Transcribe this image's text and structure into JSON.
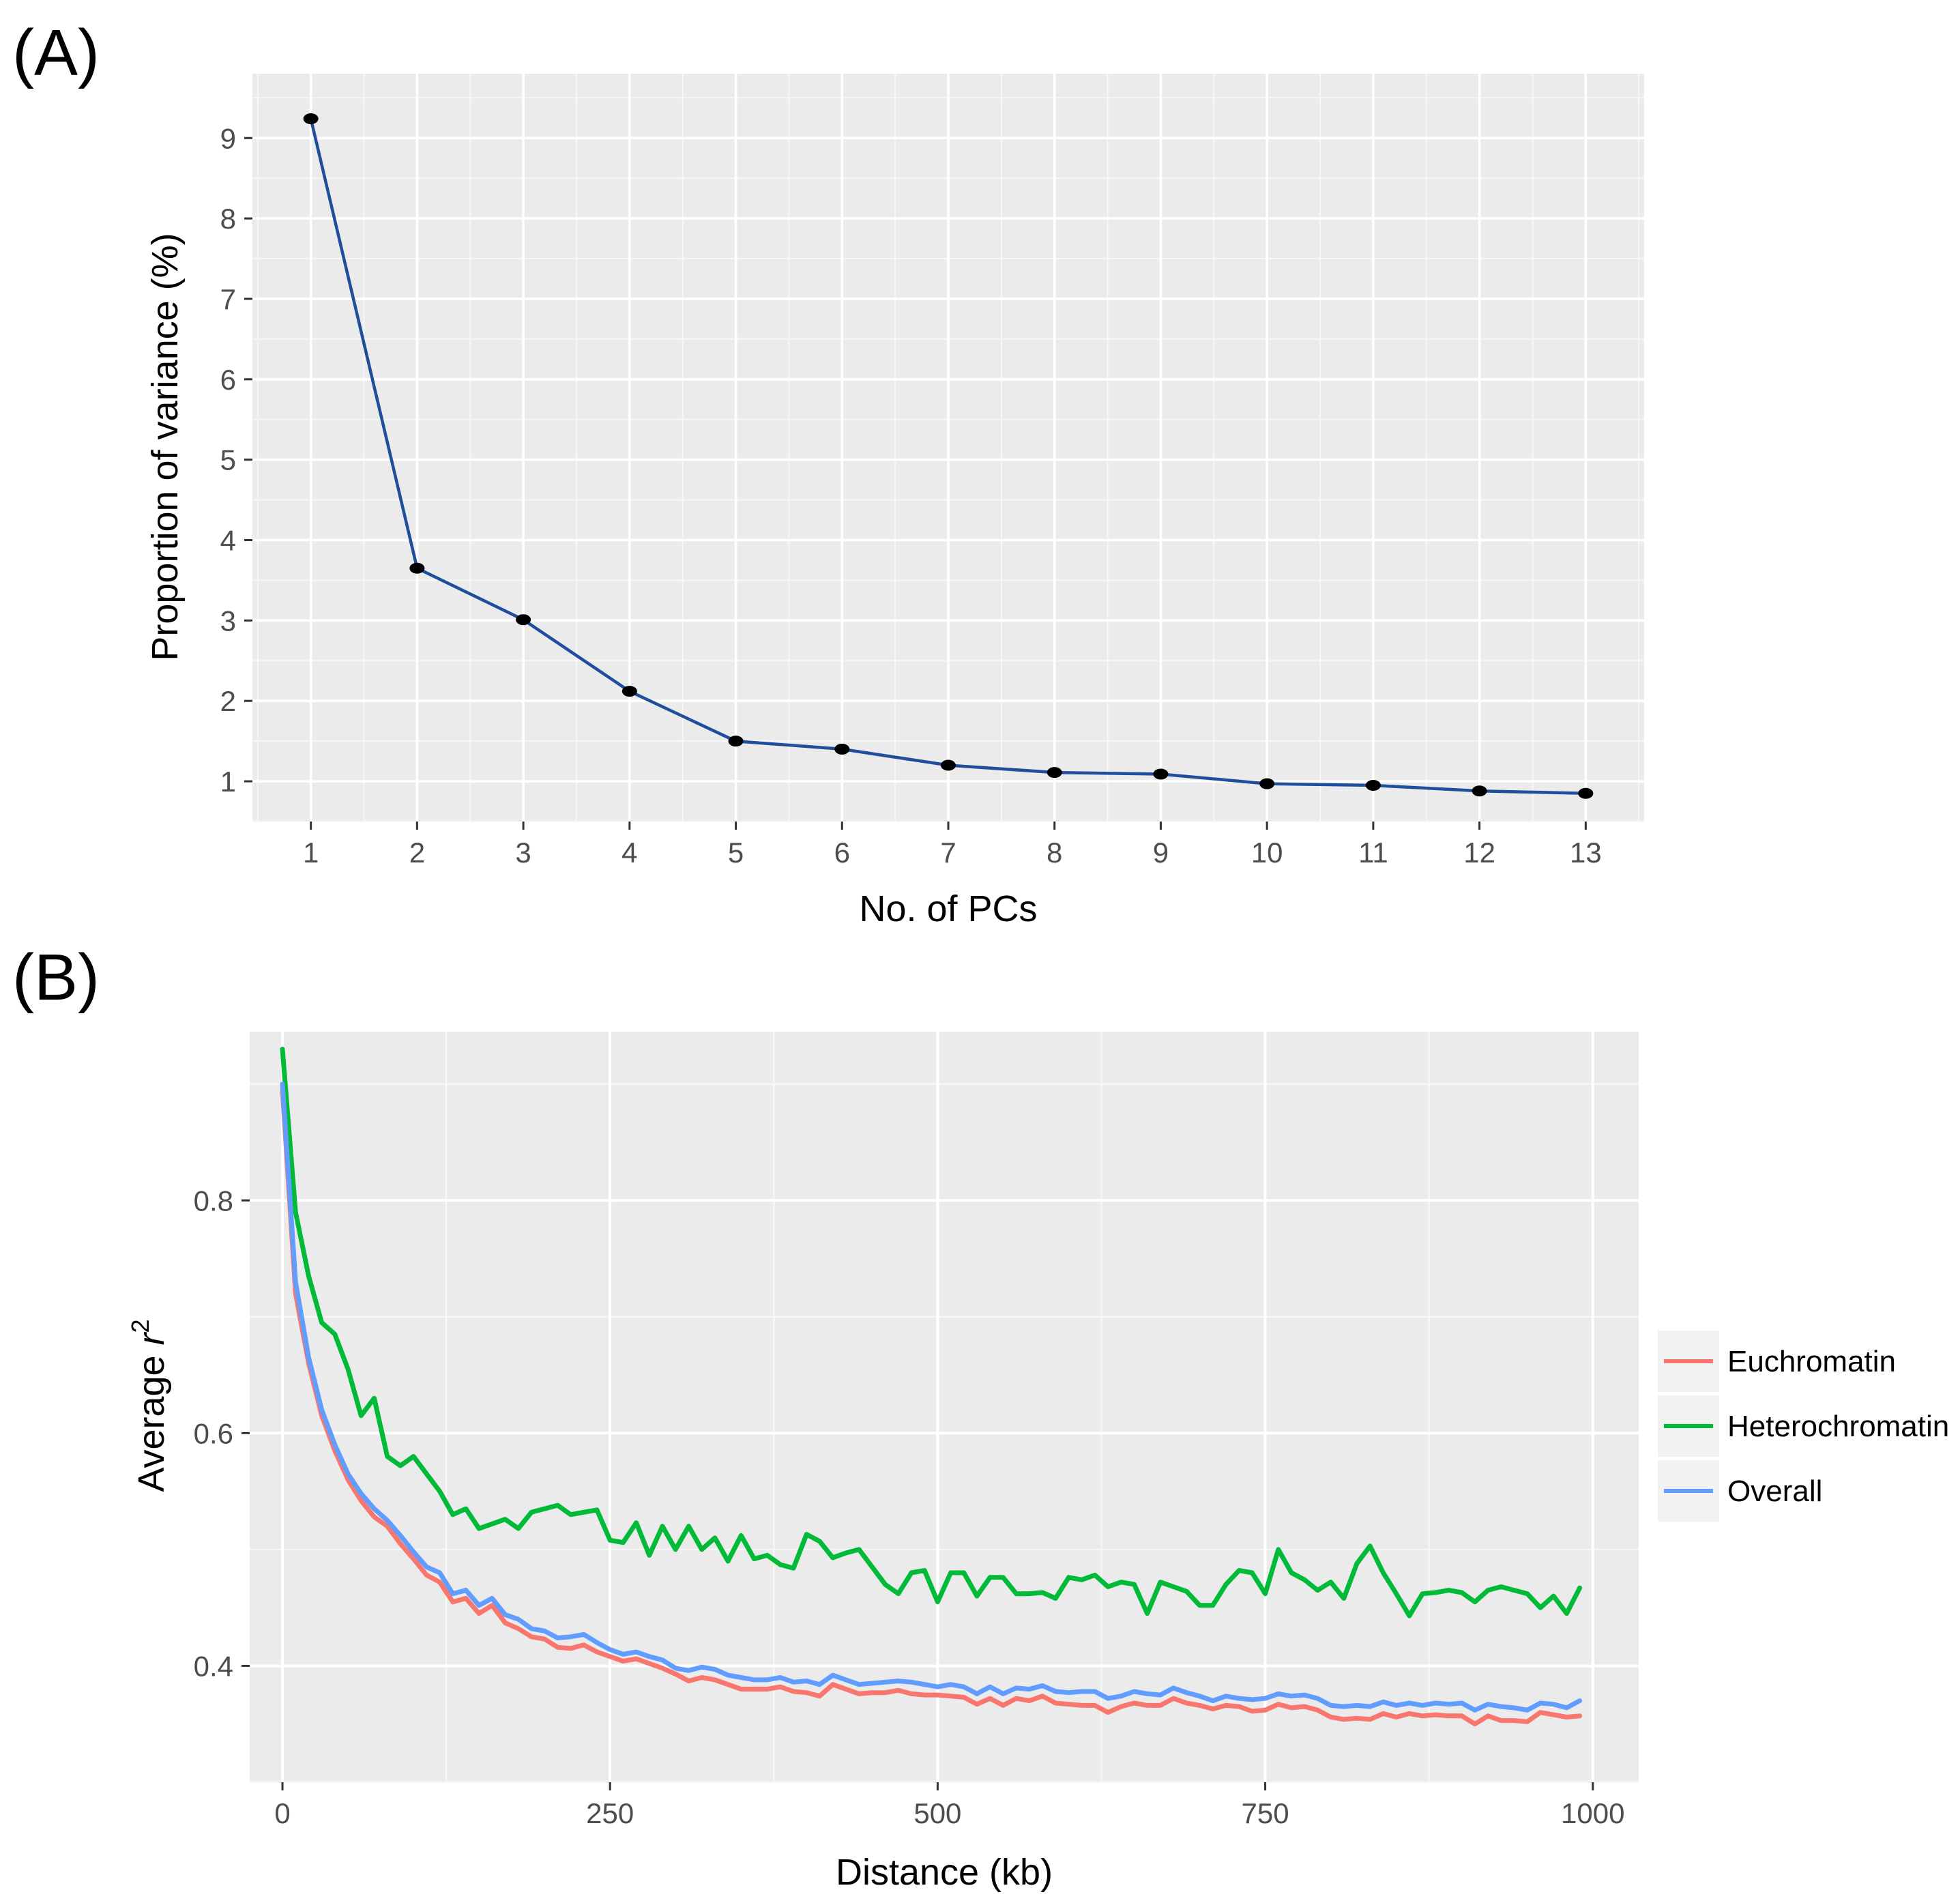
{
  "chart_data": [
    {
      "panel_label": "(A)",
      "type": "line",
      "xlabel": "No. of PCs",
      "ylabel": "Proportion of variance (%)",
      "xlim": [
        0.45,
        13.55
      ],
      "ylim": [
        0.5,
        9.8
      ],
      "xticks": [
        1,
        2,
        3,
        4,
        5,
        6,
        7,
        8,
        9,
        10,
        11,
        12,
        13
      ],
      "yticks": [
        1,
        2,
        3,
        4,
        5,
        6,
        7,
        8,
        9
      ],
      "grid": true,
      "line_color": "#1f4e9c",
      "point_color": "#000000",
      "x": [
        1,
        2,
        3,
        4,
        5,
        6,
        7,
        8,
        9,
        10,
        11,
        12,
        13
      ],
      "values": [
        9.24,
        3.65,
        3.01,
        2.12,
        1.5,
        1.4,
        1.2,
        1.11,
        1.09,
        0.97,
        0.95,
        0.88,
        0.85
      ]
    },
    {
      "panel_label": "(B)",
      "type": "line",
      "xlabel": "Distance (kb)",
      "ylabel": "Average r²",
      "ylabel_main": "Average ",
      "ylabel_italic": "r",
      "ylabel_sup": "2",
      "xlim": [
        -25,
        1035
      ],
      "ylim": [
        0.3,
        0.945
      ],
      "xticks": [
        0,
        250,
        500,
        750,
        1000
      ],
      "yticks": [
        0.4,
        0.6,
        0.8
      ],
      "ytick_labels": [
        "0.4",
        "0.6",
        "0.8"
      ],
      "grid": true,
      "legend_position": "right",
      "x": [
        0,
        10,
        20,
        30,
        40,
        50,
        60,
        70,
        80,
        90,
        100,
        110,
        120,
        130,
        140,
        150,
        160,
        170,
        180,
        190,
        200,
        210,
        220,
        230,
        240,
        250,
        260,
        270,
        280,
        290,
        300,
        310,
        320,
        330,
        340,
        350,
        360,
        370,
        380,
        390,
        400,
        410,
        420,
        430,
        440,
        450,
        460,
        470,
        480,
        490,
        500,
        510,
        520,
        530,
        540,
        550,
        560,
        570,
        580,
        590,
        600,
        610,
        620,
        630,
        640,
        650,
        660,
        670,
        680,
        690,
        700,
        710,
        720,
        730,
        740,
        750,
        760,
        770,
        780,
        790,
        800,
        810,
        820,
        830,
        840,
        850,
        860,
        870,
        880,
        890,
        900,
        910,
        920,
        930,
        940,
        950,
        960,
        970,
        980,
        990
      ],
      "series": [
        {
          "name": "Euchromatin",
          "color": "#f8766d",
          "values": [
            0.895,
            0.72,
            0.66,
            0.615,
            0.585,
            0.56,
            0.542,
            0.528,
            0.52,
            0.505,
            0.492,
            0.478,
            0.472,
            0.455,
            0.458,
            0.445,
            0.452,
            0.437,
            0.432,
            0.425,
            0.423,
            0.416,
            0.415,
            0.418,
            0.412,
            0.408,
            0.404,
            0.406,
            0.402,
            0.398,
            0.393,
            0.387,
            0.39,
            0.388,
            0.384,
            0.38,
            0.38,
            0.38,
            0.382,
            0.378,
            0.377,
            0.374,
            0.384,
            0.38,
            0.376,
            0.377,
            0.377,
            0.379,
            0.376,
            0.375,
            0.375,
            0.374,
            0.373,
            0.367,
            0.372,
            0.366,
            0.372,
            0.37,
            0.374,
            0.368,
            0.367,
            0.366,
            0.366,
            0.36,
            0.365,
            0.368,
            0.366,
            0.366,
            0.372,
            0.368,
            0.366,
            0.363,
            0.366,
            0.365,
            0.361,
            0.362,
            0.367,
            0.364,
            0.365,
            0.362,
            0.356,
            0.354,
            0.355,
            0.354,
            0.359,
            0.356,
            0.359,
            0.357,
            0.358,
            0.357,
            0.357,
            0.35,
            0.357,
            0.353,
            0.353,
            0.352,
            0.36,
            0.358,
            0.356,
            0.357
          ]
        },
        {
          "name": "Heterochromatin",
          "color": "#00ba38",
          "values": [
            0.93,
            0.79,
            0.735,
            0.695,
            0.685,
            0.655,
            0.615,
            0.63,
            0.58,
            0.572,
            0.58,
            0.565,
            0.55,
            0.53,
            0.535,
            0.518,
            0.522,
            0.526,
            0.518,
            0.532,
            0.535,
            0.538,
            0.53,
            0.532,
            0.534,
            0.508,
            0.506,
            0.523,
            0.495,
            0.52,
            0.5,
            0.52,
            0.5,
            0.51,
            0.49,
            0.512,
            0.492,
            0.495,
            0.487,
            0.484,
            0.513,
            0.507,
            0.493,
            0.497,
            0.5,
            0.485,
            0.47,
            0.462,
            0.48,
            0.482,
            0.455,
            0.48,
            0.48,
            0.46,
            0.476,
            0.476,
            0.462,
            0.462,
            0.463,
            0.458,
            0.476,
            0.474,
            0.478,
            0.468,
            0.472,
            0.47,
            0.445,
            0.472,
            0.468,
            0.464,
            0.452,
            0.452,
            0.47,
            0.482,
            0.48,
            0.462,
            0.5,
            0.48,
            0.474,
            0.465,
            0.472,
            0.458,
            0.488,
            0.503,
            0.48,
            0.462,
            0.443,
            0.462,
            0.463,
            0.465,
            0.463,
            0.455,
            0.465,
            0.468,
            0.465,
            0.462,
            0.45,
            0.46,
            0.445,
            0.467
          ]
        },
        {
          "name": "Overall",
          "color": "#619cff",
          "values": [
            0.9,
            0.73,
            0.665,
            0.62,
            0.59,
            0.565,
            0.548,
            0.535,
            0.525,
            0.512,
            0.498,
            0.485,
            0.48,
            0.462,
            0.465,
            0.452,
            0.458,
            0.444,
            0.44,
            0.432,
            0.43,
            0.424,
            0.425,
            0.427,
            0.42,
            0.414,
            0.41,
            0.412,
            0.408,
            0.405,
            0.398,
            0.396,
            0.399,
            0.397,
            0.392,
            0.39,
            0.388,
            0.388,
            0.39,
            0.386,
            0.387,
            0.384,
            0.392,
            0.388,
            0.384,
            0.385,
            0.386,
            0.387,
            0.386,
            0.384,
            0.382,
            0.384,
            0.382,
            0.376,
            0.382,
            0.376,
            0.381,
            0.38,
            0.383,
            0.378,
            0.377,
            0.378,
            0.378,
            0.372,
            0.374,
            0.378,
            0.376,
            0.375,
            0.381,
            0.377,
            0.374,
            0.37,
            0.374,
            0.372,
            0.371,
            0.372,
            0.376,
            0.374,
            0.375,
            0.372,
            0.366,
            0.365,
            0.366,
            0.365,
            0.369,
            0.366,
            0.368,
            0.366,
            0.368,
            0.367,
            0.368,
            0.362,
            0.367,
            0.365,
            0.364,
            0.362,
            0.368,
            0.367,
            0.364,
            0.37
          ]
        }
      ]
    }
  ]
}
